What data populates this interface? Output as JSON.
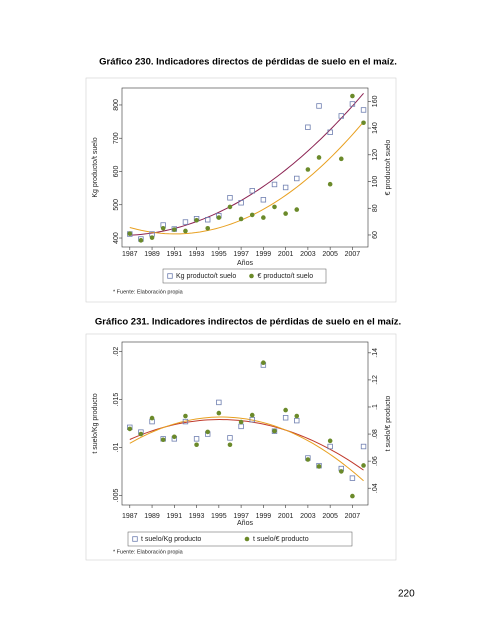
{
  "chart_data": [
    {
      "type": "scatter",
      "title": "Gráfico 230. Indicadores directos de pérdidas de suelo en el maíz.",
      "x": [
        1987,
        1988,
        1989,
        1990,
        1991,
        1992,
        1993,
        1994,
        1995,
        1996,
        1997,
        1998,
        1999,
        2000,
        2001,
        2002,
        2003,
        2004,
        2005,
        2006,
        2007,
        2008
      ],
      "xlim": [
        1986.3,
        2008.4
      ],
      "xticks": [
        1987,
        1989,
        1991,
        1993,
        1995,
        1997,
        1999,
        2001,
        2003,
        2005,
        2007
      ],
      "xlabel": "Años",
      "ylabel": "Kg producto/t suelo",
      "ylim": [
        373,
        851
      ],
      "yticks": [
        400,
        500,
        600,
        700,
        800
      ],
      "y2label": "€ producto/t suelo",
      "y2lim": [
        51,
        170
      ],
      "y2ticks": [
        60,
        80,
        100,
        120,
        140,
        160
      ],
      "legend": "bottom",
      "series": [
        {
          "name": "Kg producto/t suelo",
          "color": "#6f7fb0",
          "marker": "square",
          "fit": "quadratic",
          "fit_color": "#8b2252",
          "values": [
            412,
            397,
            412,
            439,
            427,
            448,
            458,
            455,
            467,
            521,
            506,
            542,
            515,
            561,
            552,
            579,
            733,
            797,
            718,
            767,
            803,
            785
          ]
        },
        {
          "name": "€ producto/t suelo",
          "color": "#6b8a2a",
          "marker": "circle",
          "axis": "y2",
          "fit": "quadratic",
          "fit_color": "#e8a020",
          "values": [
            61,
            56,
            58,
            65,
            64,
            63,
            71,
            65,
            73,
            81,
            72,
            75,
            73,
            81,
            76,
            79,
            109,
            118,
            98,
            117,
            164,
            144
          ]
        }
      ],
      "note": "* Fuente: Elaboración propia"
    },
    {
      "type": "scatter",
      "title": "Gráfico 231. Indicadores indirectos de pérdidas de suelo en el maíz.",
      "x": [
        1987,
        1988,
        1989,
        1990,
        1991,
        1992,
        1993,
        1994,
        1995,
        1996,
        1997,
        1998,
        1999,
        2000,
        2001,
        2002,
        2003,
        2004,
        2005,
        2006,
        2007,
        2008
      ],
      "xlim": [
        1986.3,
        2008.4
      ],
      "xticks": [
        1987,
        1989,
        1991,
        1993,
        1995,
        1997,
        1999,
        2001,
        2003,
        2005,
        2007
      ],
      "xlabel": "Años",
      "ylabel": "t suelo/Kg producto",
      "ylim": [
        0.004,
        0.021
      ],
      "yticks": [
        {
          "value": 0.005,
          "label": ".005"
        },
        {
          "value": 0.01,
          "label": ".01"
        },
        {
          "value": 0.015,
          "label": ".015"
        },
        {
          "value": 0.02,
          "label": ".02"
        }
      ],
      "y2label": "t suelo/€ producto",
      "y2lim": [
        0.0276,
        0.148
      ],
      "y2ticks": [
        {
          "value": 0.04,
          "label": ".04"
        },
        {
          "value": 0.06,
          "label": ".06"
        },
        {
          "value": 0.08,
          "label": ".08"
        },
        {
          "value": 0.1,
          "label": ".1"
        },
        {
          "value": 0.12,
          "label": ".12"
        },
        {
          "value": 0.14,
          "label": ".14"
        }
      ],
      "legend": "bottom",
      "series": [
        {
          "name": "t suelo/Kg producto",
          "color": "#6f7fb0",
          "marker": "square",
          "fit": "quadratic",
          "fit_color": "#c0392b",
          "values": [
            0.0121,
            0.0116,
            0.0127,
            0.0109,
            0.0109,
            0.0127,
            0.0109,
            0.0114,
            0.0147,
            0.011,
            0.0122,
            0.0129,
            0.0186,
            0.0117,
            0.0131,
            0.0128,
            0.0089,
            0.0081,
            0.0101,
            0.0078,
            0.0068,
            0.0101
          ]
        },
        {
          "name": "t suelo/€ producto",
          "color": "#6b8a2a",
          "marker": "circle",
          "axis": "y2",
          "fit": "quadratic",
          "fit_color": "#e8a020",
          "values": [
            0.0838,
            0.08,
            0.0918,
            0.0758,
            0.078,
            0.0933,
            0.0721,
            0.0816,
            0.0955,
            0.0721,
            0.0889,
            0.094,
            0.1327,
            0.0823,
            0.0977,
            0.0933,
            0.0612,
            0.0561,
            0.075,
            0.0524,
            0.0342,
            0.0568
          ]
        }
      ],
      "note": "* Fuente: Elaboración propia"
    }
  ],
  "page_number": "220"
}
